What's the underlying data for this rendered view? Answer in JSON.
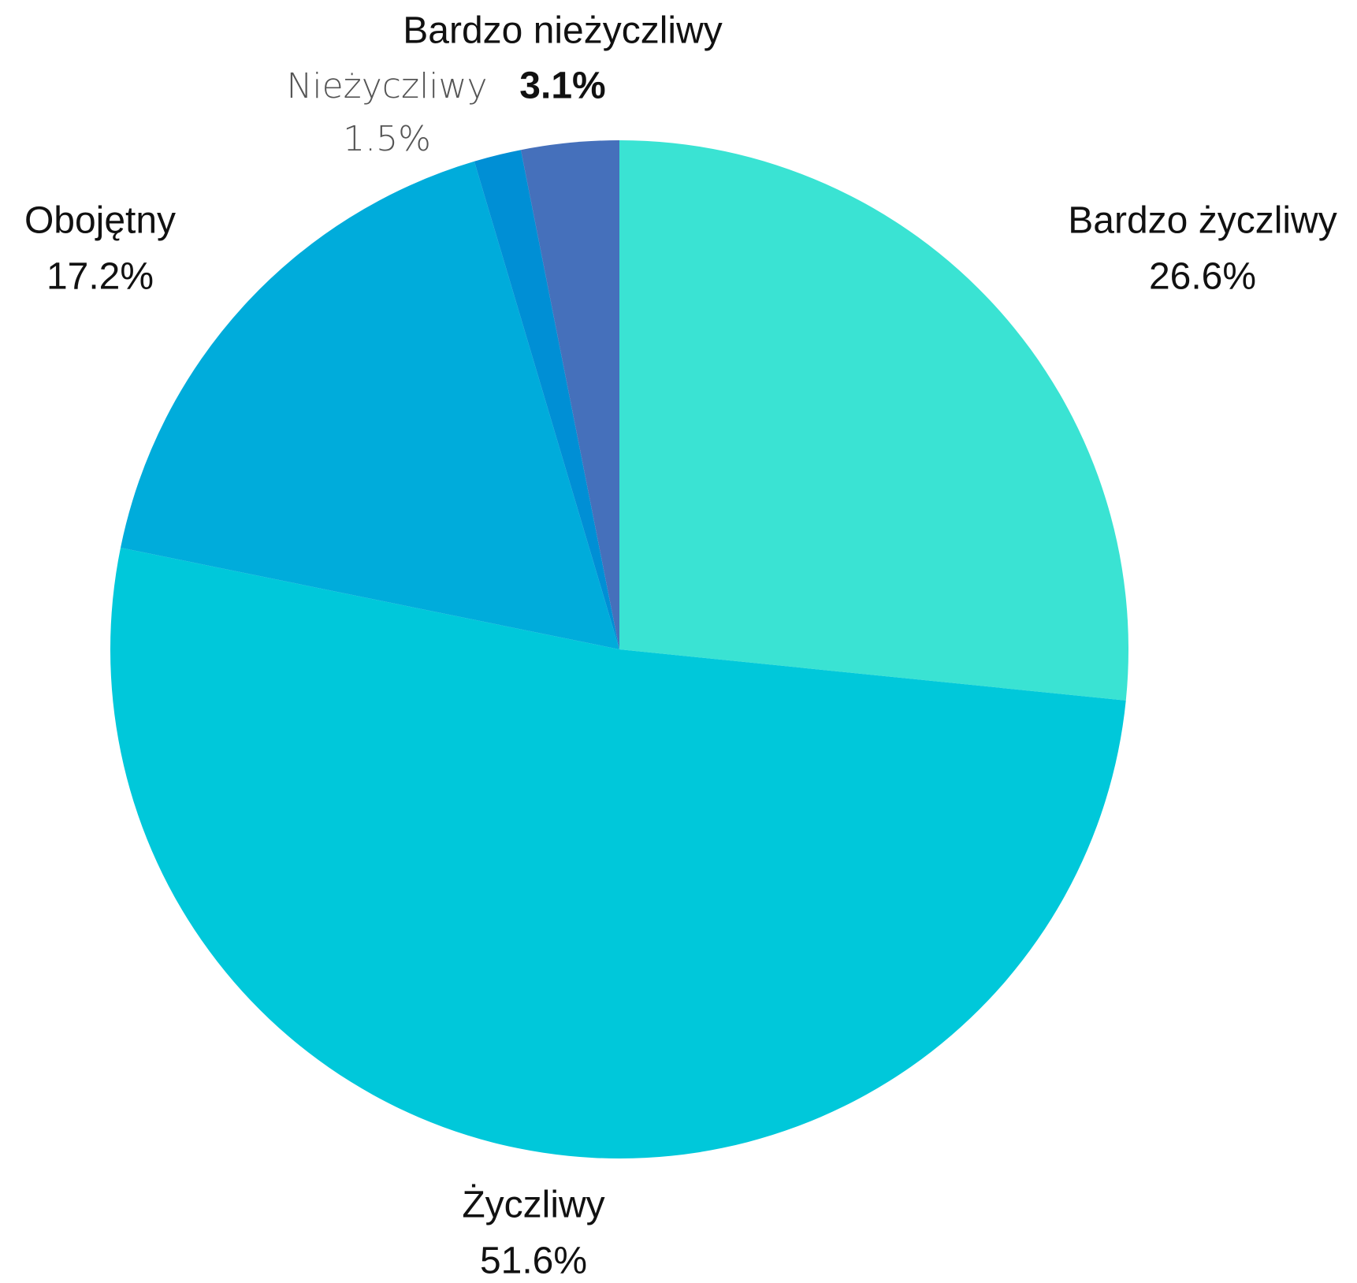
{
  "chart_data": {
    "type": "pie",
    "categories": [
      "Bardzo życzliwy",
      "Życzliwy",
      "Obojętny",
      "Nieżyczliwy",
      "Bardzo nieżyczliwy"
    ],
    "values": [
      26.6,
      51.6,
      17.2,
      1.5,
      3.1
    ],
    "value_labels": [
      "26.6%",
      "51.6%",
      "17.2%",
      "1.5%",
      "3.1%"
    ],
    "colors": [
      "#3ae3d3",
      "#00c8da",
      "#00acdb",
      "#008fd5",
      "#4570bb"
    ]
  }
}
